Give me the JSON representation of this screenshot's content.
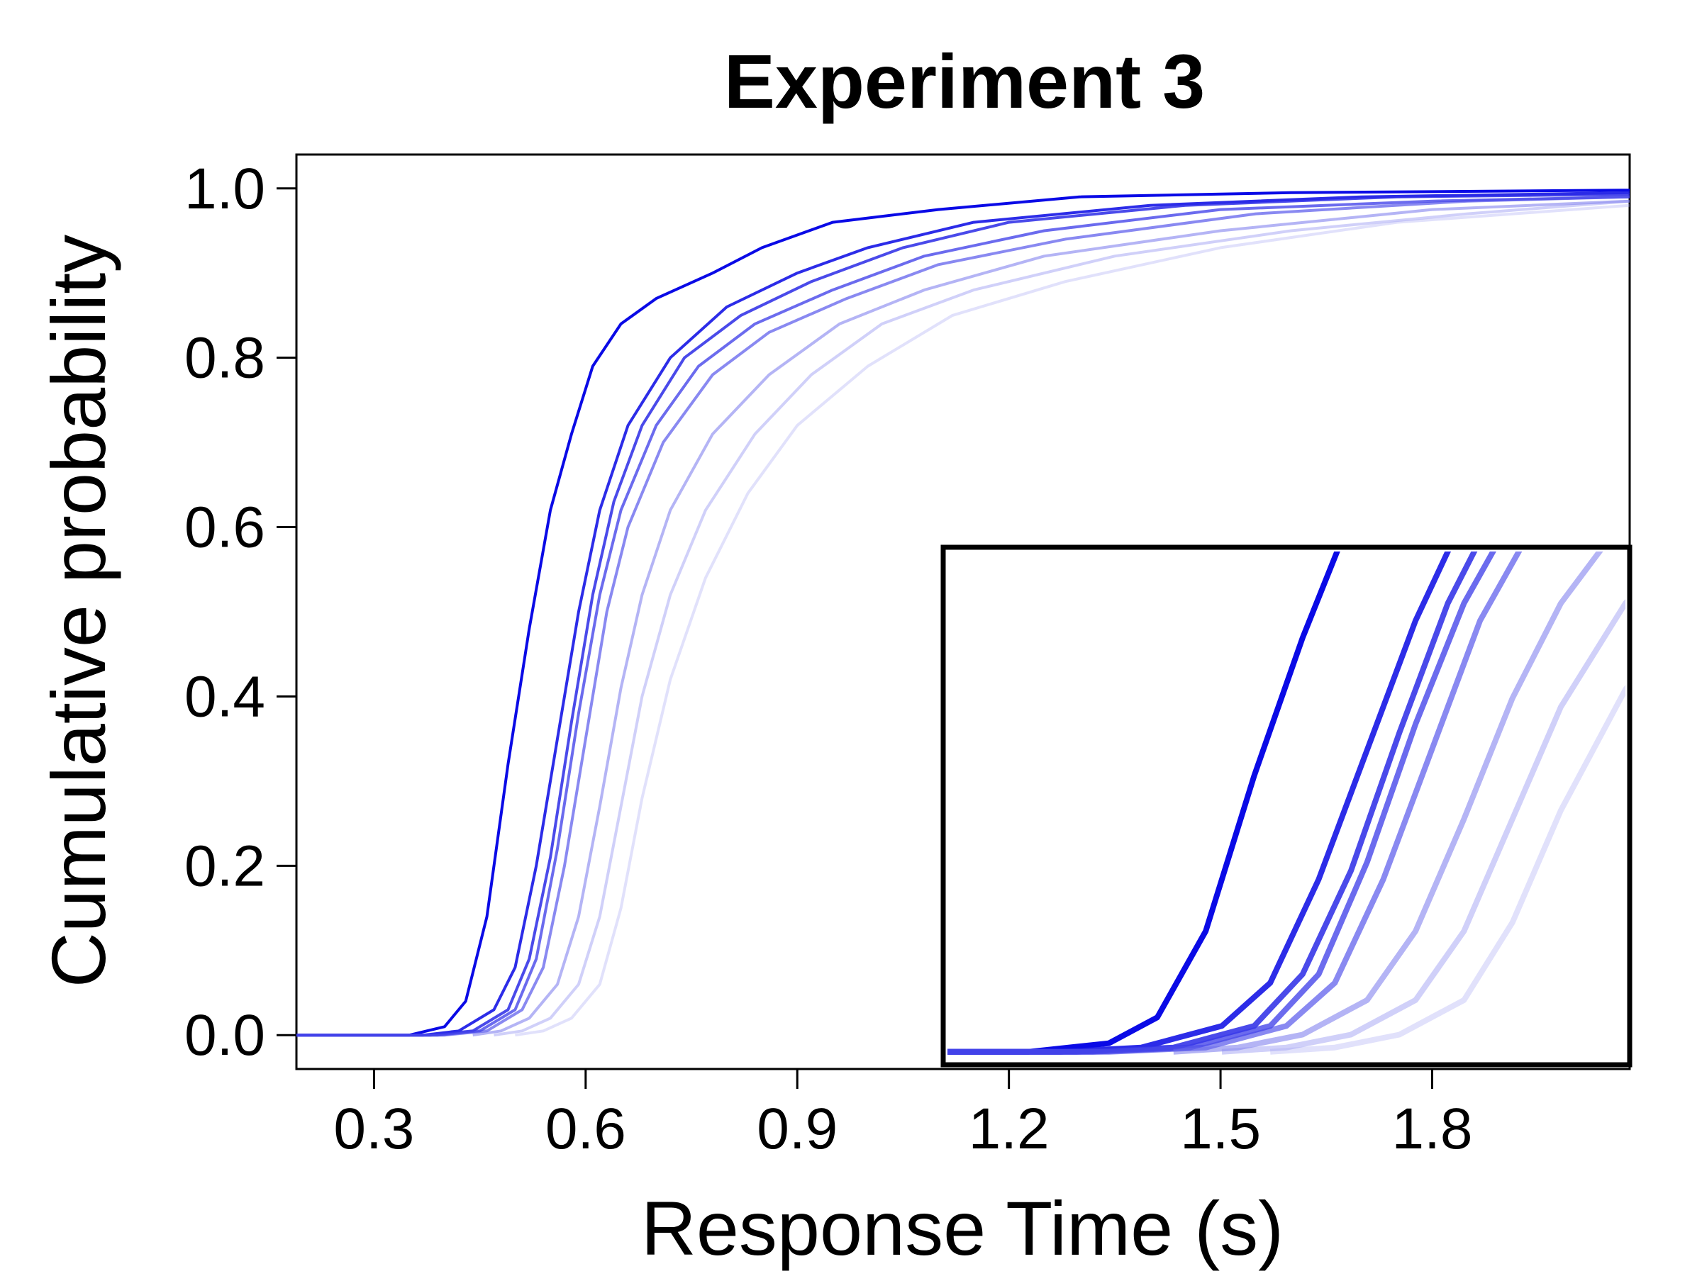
{
  "chart_data": {
    "type": "line",
    "title": "Experiment 3",
    "xlabel": "Response Time (s)",
    "ylabel": "Cumulative probability",
    "xlim": [
      0.19,
      2.08
    ],
    "ylim": [
      -0.04,
      1.04
    ],
    "xticks": [
      "0.3",
      "0.6",
      "0.9",
      "1.2",
      "1.5",
      "1.8"
    ],
    "xtick_values": [
      0.3,
      0.6,
      0.9,
      1.2,
      1.5,
      1.8
    ],
    "yticks": [
      "0.0",
      "0.2",
      "0.4",
      "0.6",
      "0.8",
      "1.0"
    ],
    "ytick_values": [
      0.0,
      0.2,
      0.4,
      0.6,
      0.8,
      1.0
    ],
    "grid": false,
    "legend": "none",
    "series": [
      {
        "color": "#0a0ae6",
        "opacity": 1.0,
        "points": [
          [
            0.19,
            0
          ],
          [
            0.35,
            0
          ],
          [
            0.4,
            0.01
          ],
          [
            0.43,
            0.04
          ],
          [
            0.46,
            0.14
          ],
          [
            0.49,
            0.32
          ],
          [
            0.52,
            0.48
          ],
          [
            0.55,
            0.62
          ],
          [
            0.58,
            0.71
          ],
          [
            0.61,
            0.79
          ],
          [
            0.65,
            0.84
          ],
          [
            0.7,
            0.87
          ],
          [
            0.78,
            0.9
          ],
          [
            0.85,
            0.93
          ],
          [
            0.95,
            0.96
          ],
          [
            1.1,
            0.975
          ],
          [
            1.3,
            0.99
          ],
          [
            1.6,
            0.995
          ],
          [
            2.08,
            0.998
          ]
        ]
      },
      {
        "color": "#1a1ae6",
        "opacity": 0.92,
        "points": [
          [
            0.19,
            0
          ],
          [
            0.37,
            0
          ],
          [
            0.42,
            0.005
          ],
          [
            0.47,
            0.03
          ],
          [
            0.5,
            0.08
          ],
          [
            0.53,
            0.2
          ],
          [
            0.56,
            0.35
          ],
          [
            0.59,
            0.5
          ],
          [
            0.62,
            0.62
          ],
          [
            0.66,
            0.72
          ],
          [
            0.72,
            0.8
          ],
          [
            0.8,
            0.86
          ],
          [
            0.9,
            0.9
          ],
          [
            1.0,
            0.93
          ],
          [
            1.15,
            0.96
          ],
          [
            1.4,
            0.98
          ],
          [
            1.7,
            0.99
          ],
          [
            2.08,
            0.995
          ]
        ]
      },
      {
        "color": "#2a2ae6",
        "opacity": 0.85,
        "points": [
          [
            0.19,
            0
          ],
          [
            0.38,
            0
          ],
          [
            0.44,
            0.005
          ],
          [
            0.49,
            0.03
          ],
          [
            0.52,
            0.09
          ],
          [
            0.55,
            0.21
          ],
          [
            0.58,
            0.37
          ],
          [
            0.61,
            0.52
          ],
          [
            0.64,
            0.63
          ],
          [
            0.68,
            0.72
          ],
          [
            0.74,
            0.8
          ],
          [
            0.82,
            0.85
          ],
          [
            0.92,
            0.89
          ],
          [
            1.05,
            0.93
          ],
          [
            1.2,
            0.96
          ],
          [
            1.45,
            0.98
          ],
          [
            1.75,
            0.99
          ],
          [
            2.08,
            0.993
          ]
        ]
      },
      {
        "color": "#3a3ae8",
        "opacity": 0.75,
        "points": [
          [
            0.19,
            0
          ],
          [
            0.39,
            0
          ],
          [
            0.45,
            0.005
          ],
          [
            0.5,
            0.03
          ],
          [
            0.53,
            0.09
          ],
          [
            0.56,
            0.22
          ],
          [
            0.59,
            0.38
          ],
          [
            0.62,
            0.52
          ],
          [
            0.65,
            0.62
          ],
          [
            0.7,
            0.72
          ],
          [
            0.76,
            0.79
          ],
          [
            0.84,
            0.84
          ],
          [
            0.95,
            0.88
          ],
          [
            1.08,
            0.92
          ],
          [
            1.25,
            0.95
          ],
          [
            1.5,
            0.975
          ],
          [
            1.8,
            0.985
          ],
          [
            2.08,
            0.99
          ]
        ]
      },
      {
        "color": "#4a4aea",
        "opacity": 0.65,
        "points": [
          [
            0.19,
            0
          ],
          [
            0.4,
            0
          ],
          [
            0.46,
            0.005
          ],
          [
            0.51,
            0.03
          ],
          [
            0.54,
            0.08
          ],
          [
            0.57,
            0.2
          ],
          [
            0.6,
            0.35
          ],
          [
            0.63,
            0.5
          ],
          [
            0.66,
            0.6
          ],
          [
            0.71,
            0.7
          ],
          [
            0.78,
            0.78
          ],
          [
            0.86,
            0.83
          ],
          [
            0.97,
            0.87
          ],
          [
            1.1,
            0.91
          ],
          [
            1.28,
            0.94
          ],
          [
            1.55,
            0.97
          ],
          [
            1.85,
            0.985
          ],
          [
            2.08,
            0.99
          ]
        ]
      },
      {
        "color": "#6a6aec",
        "opacity": 0.5,
        "points": [
          [
            0.44,
            0
          ],
          [
            0.48,
            0.005
          ],
          [
            0.52,
            0.02
          ],
          [
            0.56,
            0.06
          ],
          [
            0.59,
            0.14
          ],
          [
            0.62,
            0.27
          ],
          [
            0.65,
            0.41
          ],
          [
            0.68,
            0.52
          ],
          [
            0.72,
            0.62
          ],
          [
            0.78,
            0.71
          ],
          [
            0.86,
            0.78
          ],
          [
            0.96,
            0.84
          ],
          [
            1.08,
            0.88
          ],
          [
            1.25,
            0.92
          ],
          [
            1.5,
            0.95
          ],
          [
            1.8,
            0.975
          ],
          [
            2.08,
            0.985
          ]
        ]
      },
      {
        "color": "#8a8af0",
        "opacity": 0.4,
        "points": [
          [
            0.47,
            0
          ],
          [
            0.51,
            0.005
          ],
          [
            0.55,
            0.02
          ],
          [
            0.59,
            0.06
          ],
          [
            0.62,
            0.14
          ],
          [
            0.65,
            0.27
          ],
          [
            0.68,
            0.4
          ],
          [
            0.72,
            0.52
          ],
          [
            0.77,
            0.62
          ],
          [
            0.84,
            0.71
          ],
          [
            0.92,
            0.78
          ],
          [
            1.02,
            0.84
          ],
          [
            1.15,
            0.88
          ],
          [
            1.35,
            0.92
          ],
          [
            1.6,
            0.95
          ],
          [
            1.85,
            0.97
          ],
          [
            2.08,
            0.985
          ]
        ]
      },
      {
        "color": "#aaaaf4",
        "opacity": 0.35,
        "points": [
          [
            0.5,
            0
          ],
          [
            0.54,
            0.005
          ],
          [
            0.58,
            0.02
          ],
          [
            0.62,
            0.06
          ],
          [
            0.65,
            0.15
          ],
          [
            0.68,
            0.28
          ],
          [
            0.72,
            0.42
          ],
          [
            0.77,
            0.54
          ],
          [
            0.83,
            0.64
          ],
          [
            0.9,
            0.72
          ],
          [
            1.0,
            0.79
          ],
          [
            1.12,
            0.85
          ],
          [
            1.28,
            0.89
          ],
          [
            1.5,
            0.93
          ],
          [
            1.75,
            0.96
          ],
          [
            2.08,
            0.98
          ]
        ]
      }
    ]
  }
}
